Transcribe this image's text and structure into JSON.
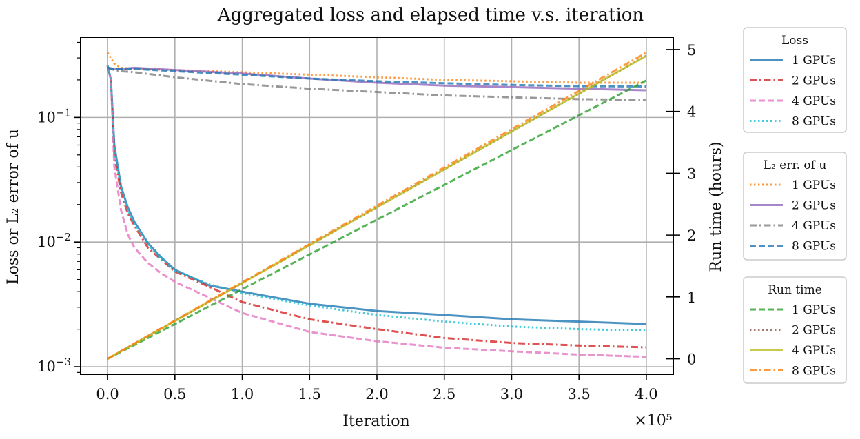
{
  "chart_data": {
    "type": "line",
    "title": "Aggregated loss and elapsed time v.s. iteration",
    "xlabel": "Iteration",
    "x_offset_label": "×10⁵",
    "ylabel_left": "Loss or L₂ error of u",
    "ylabel_right": "Run time (hours)",
    "xlim": [
      -20000,
      420000
    ],
    "ylim_left": [
      0.00087,
      0.44
    ],
    "yscale_left": "log",
    "ylim_right": [
      -0.25,
      5.2
    ],
    "grid": true,
    "x_ticks": [
      {
        "value": 0,
        "label": "0.0"
      },
      {
        "value": 50000,
        "label": "0.5"
      },
      {
        "value": 100000,
        "label": "1.0"
      },
      {
        "value": 150000,
        "label": "1.5"
      },
      {
        "value": 200000,
        "label": "2.0"
      },
      {
        "value": 250000,
        "label": "2.5"
      },
      {
        "value": 300000,
        "label": "3.0"
      },
      {
        "value": 350000,
        "label": "3.5"
      },
      {
        "value": 400000,
        "label": "4.0"
      }
    ],
    "y_left_ticks": [
      {
        "value": 0.001,
        "label": "10−3"
      },
      {
        "value": 0.01,
        "label": "10−2"
      },
      {
        "value": 0.1,
        "label": "10−1"
      }
    ],
    "y_right_ticks": [
      {
        "value": 0,
        "label": "0"
      },
      {
        "value": 1,
        "label": "1"
      },
      {
        "value": 2,
        "label": "2"
      },
      {
        "value": 3,
        "label": "3"
      },
      {
        "value": 4,
        "label": "4"
      },
      {
        "value": 5,
        "label": "5"
      }
    ],
    "legends": [
      {
        "title": "Loss",
        "entries": [
          {
            "label": "1 GPUs",
            "color": "#1f77b4",
            "dash": "solid"
          },
          {
            "label": "2 GPUs",
            "color": "#d62728",
            "dash": "dashdot"
          },
          {
            "label": "4 GPUs",
            "color": "#e377c2",
            "dash": "dashed"
          },
          {
            "label": "8 GPUs",
            "color": "#17becf",
            "dash": "dotted"
          }
        ]
      },
      {
        "title": "L₂ err. of u",
        "entries": [
          {
            "label": "1 GPUs",
            "color": "#ff7f0e",
            "dash": "dotted"
          },
          {
            "label": "2 GPUs",
            "color": "#9467bd",
            "dash": "solid"
          },
          {
            "label": "4 GPUs",
            "color": "#7f7f7f",
            "dash": "dashdot"
          },
          {
            "label": "8 GPUs",
            "color": "#1f77b4",
            "dash": "dashed"
          }
        ]
      },
      {
        "title": "Run time",
        "entries": [
          {
            "label": "1 GPUs",
            "color": "#2ca02c",
            "dash": "dashed"
          },
          {
            "label": "2 GPUs",
            "color": "#8c564b",
            "dash": "dotted"
          },
          {
            "label": "4 GPUs",
            "color": "#bcbd22",
            "dash": "solid"
          },
          {
            "label": "8 GPUs",
            "color": "#ff7f0e",
            "dash": "dashdot"
          }
        ]
      }
    ],
    "series": [
      {
        "group": "Loss",
        "name": "1 GPUs",
        "axis": "left",
        "color": "#1f77b4",
        "dash": "solid",
        "x": [
          0,
          2500,
          5000,
          10000,
          15000,
          20000,
          30000,
          40000,
          50000,
          75000,
          100000,
          150000,
          200000,
          250000,
          300000,
          350000,
          400000
        ],
        "y": [
          0.26,
          0.2,
          0.06,
          0.028,
          0.019,
          0.0145,
          0.0098,
          0.0075,
          0.006,
          0.0045,
          0.004,
          0.0032,
          0.0028,
          0.0026,
          0.0024,
          0.0023,
          0.0022
        ]
      },
      {
        "group": "Loss",
        "name": "2 GPUs",
        "axis": "left",
        "color": "#d62728",
        "dash": "dashdot",
        "x": [
          0,
          2500,
          5000,
          10000,
          15000,
          20000,
          30000,
          40000,
          50000,
          75000,
          100000,
          150000,
          200000,
          250000,
          300000,
          350000,
          400000
        ],
        "y": [
          0.26,
          0.2,
          0.05,
          0.025,
          0.017,
          0.0135,
          0.009,
          0.0072,
          0.0058,
          0.0044,
          0.0033,
          0.0024,
          0.002,
          0.0017,
          0.00155,
          0.00148,
          0.00143
        ]
      },
      {
        "group": "Loss",
        "name": "4 GPUs",
        "axis": "left",
        "color": "#e377c2",
        "dash": "dashed",
        "x": [
          0,
          2500,
          5000,
          10000,
          15000,
          20000,
          30000,
          40000,
          50000,
          75000,
          100000,
          150000,
          200000,
          250000,
          300000,
          350000,
          400000
        ],
        "y": [
          0.26,
          0.2,
          0.04,
          0.018,
          0.0115,
          0.009,
          0.0068,
          0.0056,
          0.0048,
          0.0036,
          0.0027,
          0.0019,
          0.0016,
          0.00142,
          0.00133,
          0.00125,
          0.0012
        ]
      },
      {
        "group": "Loss",
        "name": "8 GPUs",
        "axis": "left",
        "color": "#17becf",
        "dash": "dotted",
        "x": [
          0,
          2500,
          5000,
          10000,
          15000,
          20000,
          30000,
          40000,
          50000,
          75000,
          100000,
          150000,
          200000,
          250000,
          300000,
          350000,
          400000
        ],
        "y": [
          0.26,
          0.2,
          0.055,
          0.027,
          0.018,
          0.014,
          0.0095,
          0.0073,
          0.0059,
          0.0046,
          0.0039,
          0.0031,
          0.0026,
          0.0023,
          0.0021,
          0.002,
          0.00195
        ]
      },
      {
        "group": "L₂ err. of u",
        "name": "1 GPUs",
        "axis": "left",
        "color": "#ff7f0e",
        "dash": "dotted",
        "x": [
          0,
          5000,
          10000,
          20000,
          50000,
          100000,
          150000,
          200000,
          250000,
          300000,
          350000,
          400000
        ],
        "y": [
          0.33,
          0.27,
          0.25,
          0.245,
          0.24,
          0.23,
          0.22,
          0.21,
          0.2,
          0.195,
          0.19,
          0.19
        ]
      },
      {
        "group": "L₂ err. of u",
        "name": "2 GPUs",
        "axis": "left",
        "color": "#9467bd",
        "dash": "solid",
        "x": [
          0,
          5000,
          10000,
          20000,
          50000,
          100000,
          150000,
          200000,
          250000,
          300000,
          350000,
          400000
        ],
        "y": [
          0.25,
          0.245,
          0.245,
          0.25,
          0.24,
          0.225,
          0.205,
          0.19,
          0.18,
          0.175,
          0.17,
          0.165
        ]
      },
      {
        "group": "L₂ err. of u",
        "name": "4 GPUs",
        "axis": "left",
        "color": "#7f7f7f",
        "dash": "dashdot",
        "x": [
          0,
          5000,
          10000,
          20000,
          50000,
          100000,
          150000,
          200000,
          250000,
          300000,
          350000,
          400000
        ],
        "y": [
          0.25,
          0.24,
          0.235,
          0.23,
          0.21,
          0.185,
          0.17,
          0.16,
          0.15,
          0.145,
          0.14,
          0.138
        ]
      },
      {
        "group": "L₂ err. of u",
        "name": "8 GPUs",
        "axis": "left",
        "color": "#1f77b4",
        "dash": "dashed",
        "x": [
          0,
          5000,
          10000,
          20000,
          50000,
          100000,
          150000,
          200000,
          250000,
          300000,
          350000,
          400000
        ],
        "y": [
          0.25,
          0.245,
          0.245,
          0.245,
          0.235,
          0.22,
          0.205,
          0.195,
          0.188,
          0.182,
          0.178,
          0.177
        ]
      },
      {
        "group": "Run time",
        "name": "1 GPUs",
        "axis": "right",
        "color": "#2ca02c",
        "dash": "dashed",
        "x": [
          0,
          400000
        ],
        "y": [
          0,
          4.5
        ]
      },
      {
        "group": "Run time",
        "name": "2 GPUs",
        "axis": "right",
        "color": "#8c564b",
        "dash": "dotted",
        "x": [
          0,
          400000
        ],
        "y": [
          0,
          4.9
        ]
      },
      {
        "group": "Run time",
        "name": "4 GPUs",
        "axis": "right",
        "color": "#bcbd22",
        "dash": "solid",
        "x": [
          0,
          400000
        ],
        "y": [
          0,
          4.9
        ]
      },
      {
        "group": "Run time",
        "name": "8 GPUs",
        "axis": "right",
        "color": "#ff7f0e",
        "dash": "dashdot",
        "x": [
          0,
          400000
        ],
        "y": [
          0,
          4.95
        ]
      }
    ]
  }
}
